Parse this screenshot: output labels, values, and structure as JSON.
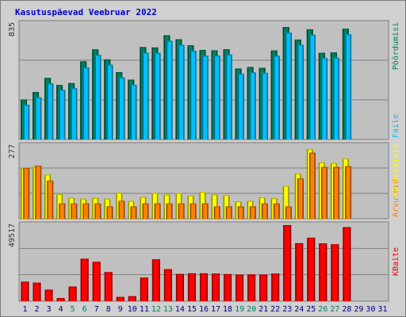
{
  "title": "Kasutuspäevad Veebruar 2022",
  "chart_data": {
    "type": "bar",
    "x": [
      "1",
      "2",
      "3",
      "4",
      "5",
      "6",
      "7",
      "8",
      "9",
      "10",
      "11",
      "12",
      "13",
      "14",
      "15",
      "16",
      "17",
      "18",
      "19",
      "20",
      "21",
      "22",
      "23",
      "24",
      "25",
      "26",
      "27",
      "28",
      "29",
      "30",
      "31"
    ],
    "weekend_days": [
      "5",
      "6",
      "12",
      "13",
      "19",
      "20",
      "26",
      "27"
    ],
    "panels": [
      {
        "ymax_label": "835",
        "ymax": 835,
        "series": [
          {
            "name": "Pöördumisi",
            "color": "#008060",
            "values": [
              288,
              342,
              444,
              393,
              407,
              564,
              650,
              578,
              486,
              432,
              667,
              664,
              752,
              723,
              680,
              646,
              643,
              651,
              512,
              523,
              517,
              642,
              811,
              721,
              795,
              625,
              628,
              799
            ]
          },
          {
            "name": "Faile",
            "color": "#00c0ff",
            "values": [
              250,
              304,
              405,
              358,
              370,
              520,
              610,
              540,
              447,
              395,
              627,
              625,
              712,
              683,
              640,
              604,
              605,
              613,
              475,
              484,
              481,
              604,
              772,
              684,
              756,
              588,
              590,
              760
            ]
          }
        ]
      },
      {
        "ymax_label": "277",
        "ymax": 277,
        "series": [
          {
            "name": "Külastajaid",
            "color": "#ffff00",
            "values": [
              193,
              198,
              168,
              93,
              80,
              76,
              79,
              76,
              99,
              68,
              83,
              98,
              92,
              98,
              88,
              102,
              92,
              90,
              66,
              68,
              82,
              78,
              125,
              172,
              265,
              214,
              212,
              229
            ]
          },
          {
            "name": "Arvuteid",
            "color": "#ff8000",
            "values": [
              193,
              202,
              145,
              58,
              58,
              58,
              58,
              47,
              68,
              47,
              58,
              58,
              58,
              58,
              58,
              58,
              47,
              47,
              47,
              47,
              58,
              58,
              47,
              153,
              251,
              197,
              197,
              200
            ]
          }
        ]
      },
      {
        "ymax_label": "49517",
        "ymax": 49517,
        "series": [
          {
            "name": "KBaite",
            "color": "#ff0000",
            "values": [
              12700,
              12000,
              7500,
              2000,
              9500,
              27600,
              25600,
              18900,
              2700,
              3200,
              15300,
              27200,
              20800,
              17700,
              18100,
              18100,
              18000,
              17600,
              17300,
              17400,
              17300,
              18000,
              49517,
              37700,
              41300,
              37600,
              37000,
              48200
            ]
          }
        ]
      }
    ],
    "legend": [
      "KBaite",
      "Arvuteid",
      "Külastajaid",
      "Faile",
      "Pöördumisi"
    ]
  },
  "colors": {
    "background": "#c0c0c0",
    "frame": "#d0d0d0",
    "title": "#0000cc",
    "weekend": "#008060",
    "weekday": "#000080"
  }
}
